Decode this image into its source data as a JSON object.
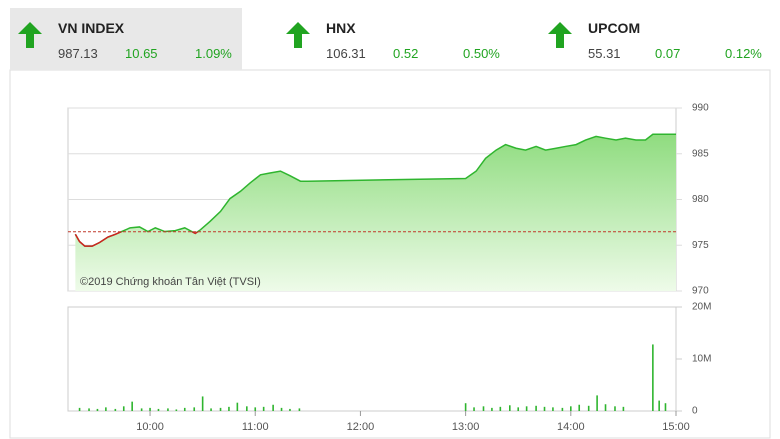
{
  "indices": [
    {
      "name": "VN INDEX",
      "last": "987.13",
      "change": "10.65",
      "percent": "1.09%"
    },
    {
      "name": "HNX",
      "last": "106.31",
      "change": "0.52",
      "percent": "0.50%"
    },
    {
      "name": "UPCOM",
      "last": "55.31",
      "change": "0.07",
      "percent": "0.12%"
    }
  ],
  "chart_data": [
    {
      "type": "line",
      "annotation": "©2019 Chứng khoán Tân Việt (TVSI)",
      "reference": 976.48,
      "x": [
        9.29,
        9.33,
        9.38,
        9.45,
        9.52,
        9.6,
        9.67,
        9.71,
        9.81,
        9.9,
        9.98,
        10.05,
        10.14,
        10.24,
        10.33,
        10.43,
        10.48,
        10.57,
        10.67,
        10.76,
        10.86,
        10.95,
        11.05,
        11.14,
        11.24,
        11.33,
        11.43,
        11.5,
        13.0,
        13.1,
        13.19,
        13.29,
        13.38,
        13.48,
        13.57,
        13.67,
        13.76,
        13.86,
        13.95,
        14.05,
        14.14,
        14.24,
        14.33,
        14.43,
        14.52,
        14.62,
        14.71,
        14.78,
        15.0
      ],
      "series": [
        {
          "color": "#2fb52f",
          "values": [
            976.2,
            975.4,
            974.9,
            974.9,
            975.3,
            975.9,
            976.2,
            976.4,
            976.9,
            977.0,
            976.5,
            976.9,
            976.5,
            976.6,
            976.9,
            976.3,
            976.7,
            977.6,
            978.7,
            980.1,
            980.9,
            981.8,
            982.7,
            982.9,
            983.1,
            982.6,
            982.0,
            982.0,
            982.3,
            983.1,
            984.5,
            985.4,
            986.0,
            985.6,
            985.4,
            985.8,
            985.4,
            985.6,
            985.8,
            986.0,
            986.5,
            986.9,
            986.7,
            986.5,
            986.7,
            986.5,
            986.5,
            987.13,
            987.13
          ]
        }
      ],
      "xlim": [
        9.22,
        15.0
      ],
      "ylim": [
        970,
        990
      ],
      "yticks": [
        970,
        975,
        980,
        985,
        990
      ],
      "grid": true
    },
    {
      "type": "bar",
      "x": [
        9.33,
        9.42,
        9.5,
        9.58,
        9.67,
        9.75,
        9.83,
        9.92,
        10.0,
        10.08,
        10.17,
        10.25,
        10.33,
        10.42,
        10.5,
        10.58,
        10.67,
        10.75,
        10.83,
        10.92,
        11.0,
        11.08,
        11.17,
        11.25,
        11.33,
        11.42,
        13.0,
        13.08,
        13.17,
        13.25,
        13.33,
        13.42,
        13.5,
        13.58,
        13.67,
        13.75,
        13.83,
        13.92,
        14.0,
        14.08,
        14.17,
        14.25,
        14.33,
        14.42,
        14.5,
        14.78,
        14.84,
        14.9
      ],
      "series": [
        {
          "color": "#2fb52f",
          "values": [
            600000,
            500000,
            400000,
            700000,
            400000,
            900000,
            1800000,
            500000,
            600000,
            400000,
            500000,
            300000,
            600000,
            700000,
            2800000,
            500000,
            600000,
            800000,
            1600000,
            900000,
            700000,
            800000,
            1200000,
            600000,
            400000,
            500000,
            1500000,
            700000,
            900000,
            600000,
            800000,
            1100000,
            700000,
            900000,
            1000000,
            800000,
            700000,
            600000,
            900000,
            1200000,
            1000000,
            3000000,
            1300000,
            900000,
            800000,
            12800000,
            2000000,
            1500000
          ]
        }
      ],
      "xlim": [
        9.22,
        15.0
      ],
      "ylim": [
        0,
        20000000
      ],
      "yticks": [
        0,
        {
          "value": 10000000,
          "label": "10M"
        },
        {
          "value": 20000000,
          "label": "20M"
        }
      ],
      "xticks": [
        {
          "value": 10,
          "label": "10:00"
        },
        {
          "value": 11,
          "label": "11:00"
        },
        {
          "value": 12,
          "label": "12:00"
        },
        {
          "value": 13,
          "label": "13:00"
        },
        {
          "value": 14,
          "label": "14:00"
        },
        {
          "value": 15,
          "label": "15:00"
        }
      ]
    }
  ]
}
